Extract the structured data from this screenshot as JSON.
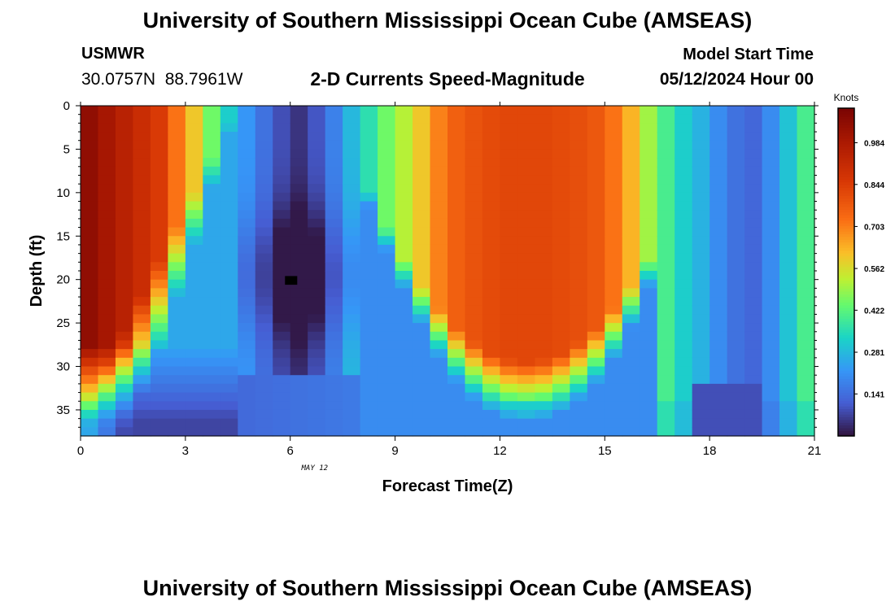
{
  "header": {
    "title": "University of Southern Mississippi Ocean Cube (AMSEAS)",
    "station": "USMWR",
    "coordinates": "30.0757N  88.7961W",
    "subtitle": "2-D Currents Speed-Magnitude",
    "model_start_label": "Model Start Time",
    "model_start_value": "05/12/2024 Hour 00"
  },
  "footer": {
    "title": "University of Southern Mississippi Ocean Cube (AMSEAS)"
  },
  "chart_data": {
    "type": "heatmap",
    "title": "2-D Currents Speed-Magnitude",
    "xlabel": "Forecast Time(Z)",
    "ylabel": "Depth (ft)",
    "date_label": "MAY 12",
    "xlim": [
      0,
      21
    ],
    "ylim": [
      0,
      38
    ],
    "x_ticks": [
      0,
      3,
      6,
      9,
      12,
      15,
      18,
      21
    ],
    "y_ticks": [
      0,
      5,
      10,
      15,
      20,
      25,
      30,
      35
    ],
    "x_tick_labels": [
      "0",
      "3",
      "6",
      "9",
      "12",
      "15",
      "18",
      "21"
    ],
    "y_tick_labels": [
      "0",
      "5",
      "10",
      "15",
      "20",
      "25",
      "30",
      "35"
    ],
    "colorbar": {
      "title": "Knots",
      "min": 0.0,
      "max": 1.1,
      "ticks": [
        0.141,
        0.281,
        0.422,
        0.562,
        0.703,
        0.844,
        0.984
      ],
      "tick_labels": [
        "0.141",
        "0.281",
        "0.422",
        "0.562",
        "0.703",
        "0.844",
        "0.984"
      ]
    },
    "time_steps_hours": [
      0,
      0.5,
      1,
      1.5,
      2,
      2.5,
      3,
      3.5,
      4,
      4.5,
      5,
      5.5,
      6,
      6.5,
      7,
      7.5,
      8,
      8.5,
      9,
      9.5,
      10,
      10.5,
      11,
      11.5,
      12,
      12.5,
      13,
      13.5,
      14,
      14.5,
      15,
      15.5,
      16,
      16.5,
      17,
      17.5,
      18,
      18.5,
      19,
      19.5,
      20,
      20.5
    ],
    "mixed_layer_column_speed_knots": [
      1.05,
      1.0,
      0.95,
      0.9,
      0.85,
      0.72,
      0.6,
      0.45,
      0.32,
      0.22,
      0.15,
      0.09,
      0.05,
      0.1,
      0.18,
      0.28,
      0.36,
      0.45,
      0.52,
      0.6,
      0.7,
      0.76,
      0.79,
      0.81,
      0.82,
      0.82,
      0.82,
      0.81,
      0.8,
      0.78,
      0.72,
      0.63,
      0.5,
      0.4,
      0.32,
      0.27,
      0.2,
      0.15,
      0.13,
      0.2,
      0.3,
      0.4
    ],
    "notes": {
      "minimum": "~0.0 knots at hour 6, depth 20 ft",
      "secondary_minimum": "~0.1 knots near hour 18, depth 36 ft"
    }
  }
}
